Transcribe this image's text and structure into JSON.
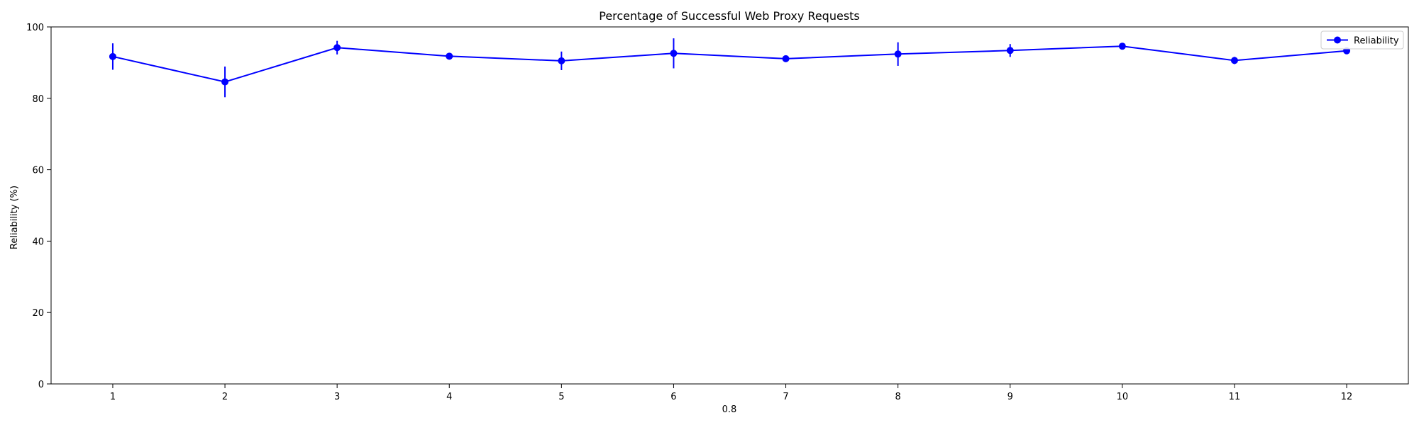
{
  "chart_data": {
    "type": "line",
    "title": "Percentage of Successful Web Proxy Requests",
    "xlabel": "0.8",
    "ylabel": "Reliability (%)",
    "x": [
      1,
      2,
      3,
      4,
      5,
      6,
      7,
      8,
      9,
      10,
      11,
      12
    ],
    "xlim": [
      0.45,
      12.55
    ],
    "ylim": [
      0,
      100
    ],
    "yticks": [
      0,
      20,
      40,
      60,
      80,
      100
    ],
    "grid": false,
    "legend_position": "top-right",
    "series": [
      {
        "name": "Reliability",
        "color": "#0000ff",
        "marker": "circle",
        "values": [
          91.7,
          84.6,
          94.2,
          91.8,
          90.5,
          92.6,
          91.1,
          92.4,
          93.4,
          94.6,
          90.6,
          93.3
        ],
        "errors": [
          3.7,
          4.3,
          1.9,
          0.8,
          2.6,
          4.2,
          0.4,
          3.3,
          1.8,
          0.5,
          1.0,
          0.9
        ]
      }
    ]
  }
}
